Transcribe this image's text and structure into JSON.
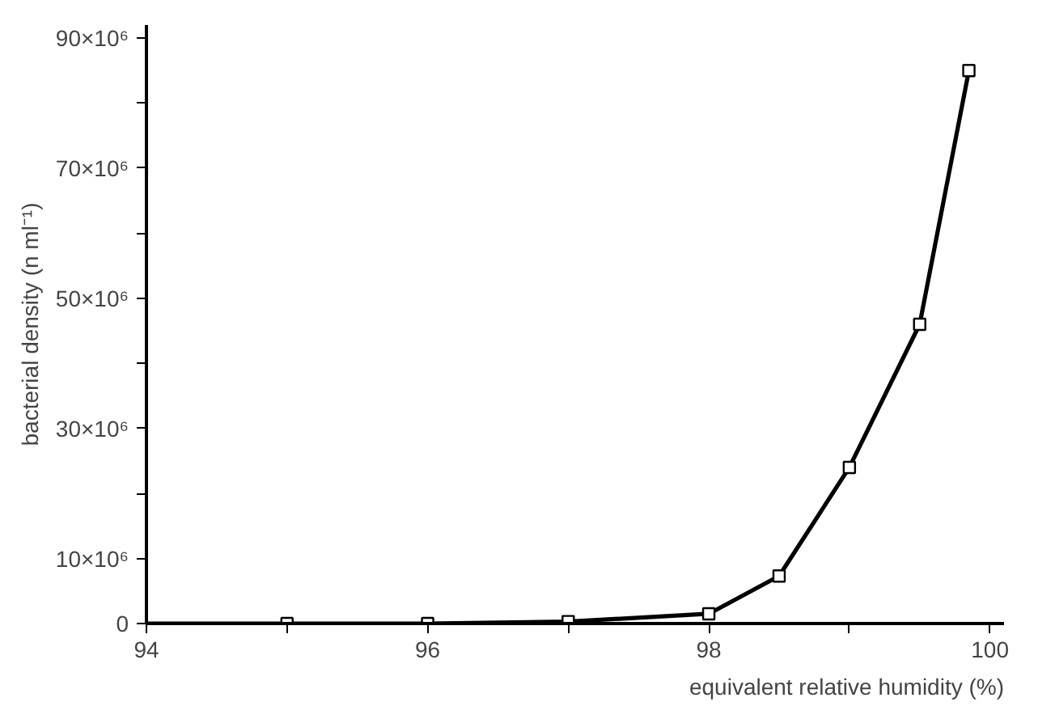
{
  "chart_data": {
    "type": "scatter",
    "xlabel": "equivalent relative humidity (%)",
    "ylabel": "bacterial density (n ml⁻¹)",
    "xlim": [
      94,
      100.1
    ],
    "ylim": [
      0,
      92000000
    ],
    "xticks": [
      94,
      {
        "value": 95,
        "label": null
      },
      96,
      {
        "value": 97,
        "label": null
      },
      98,
      {
        "value": 99,
        "label": null
      },
      100
    ],
    "yticks": [
      0,
      {
        "value": 10000000,
        "label": "10×10⁶"
      },
      {
        "value": 20000000,
        "label": null
      },
      {
        "value": 30000000,
        "label": "30×10⁶"
      },
      {
        "value": 40000000,
        "label": null
      },
      {
        "value": 50000000,
        "label": "50×10⁶"
      },
      {
        "value": 60000000,
        "label": null
      },
      {
        "value": 70000000,
        "label": "70×10⁶"
      },
      {
        "value": 80000000,
        "label": null
      },
      {
        "value": 90000000,
        "label": "90×10⁶"
      }
    ],
    "grid": false,
    "series": [
      {
        "type": "line",
        "color": "#000000",
        "marker": "none",
        "line_style": "solid",
        "x": [
          94,
          95,
          96,
          97,
          98,
          98.5,
          99,
          99.5,
          99.85
        ],
        "values": [
          0,
          0,
          0,
          300000,
          1500000,
          7300000,
          24000000,
          46000000,
          85000000
        ]
      },
      {
        "color": "#000000",
        "marker": "square",
        "x": [
          95,
          96,
          97,
          98,
          98.5,
          99,
          99.5,
          99.85
        ],
        "values": [
          0,
          0,
          300000,
          1500000,
          7300000,
          24000000,
          46000000,
          85000000
        ]
      }
    ]
  }
}
